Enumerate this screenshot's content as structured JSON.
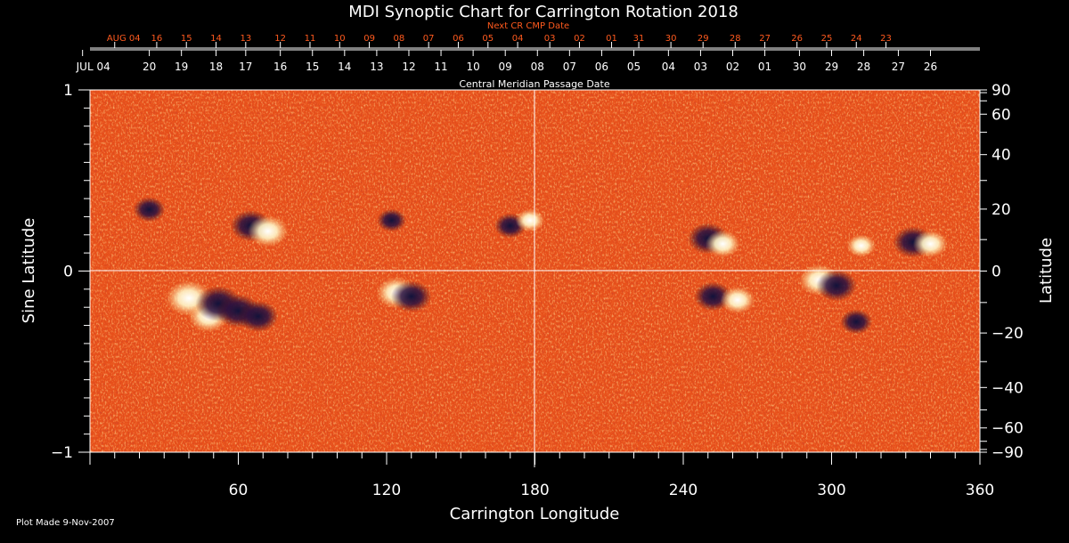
{
  "chart_data": {
    "type": "heatmap",
    "title": "MDI Synoptic Chart for Carrington Rotation 2018",
    "xlabel": "Carrington Longitude",
    "ylabel_left": "Sine Latitude",
    "ylabel_right": "Latitude",
    "top_axis_upper_label": "Next CR CMP Date",
    "top_axis_lower_label": "Central Meridian Passage Date",
    "footer": "Plot Made  9-Nov-2007",
    "xlim": [
      0,
      360
    ],
    "ylim": [
      -1,
      1
    ],
    "x_ticks": [
      {
        "value": 60,
        "label": "60"
      },
      {
        "value": 120,
        "label": "120"
      },
      {
        "value": 180,
        "label": "180"
      },
      {
        "value": 240,
        "label": "240"
      },
      {
        "value": 300,
        "label": "300"
      },
      {
        "value": 360,
        "label": "360"
      }
    ],
    "y_left_ticks": [
      {
        "value": 1,
        "label": "1"
      },
      {
        "value": 0,
        "label": "0"
      },
      {
        "value": -1,
        "label": "−1"
      }
    ],
    "y_right_ticks": [
      {
        "value": 90,
        "label": "90"
      },
      {
        "value": 60,
        "label": "60"
      },
      {
        "value": 40,
        "label": "40"
      },
      {
        "value": 20,
        "label": "20"
      },
      {
        "value": 0,
        "label": "0"
      },
      {
        "value": -20,
        "label": "−20"
      },
      {
        "value": -40,
        "label": "−40"
      },
      {
        "value": -60,
        "label": "−60"
      },
      {
        "value": -90,
        "label": "−90"
      }
    ],
    "upper_date_labels": [
      {
        "lon": 10,
        "label": "AUG 04",
        "month": true
      },
      {
        "lon": 27,
        "label": "16"
      },
      {
        "lon": 39,
        "label": "15"
      },
      {
        "lon": 51,
        "label": "14"
      },
      {
        "lon": 63,
        "label": "13"
      },
      {
        "lon": 77,
        "label": "12"
      },
      {
        "lon": 89,
        "label": "11"
      },
      {
        "lon": 101,
        "label": "10"
      },
      {
        "lon": 113,
        "label": "09"
      },
      {
        "lon": 125,
        "label": "08"
      },
      {
        "lon": 137,
        "label": "07"
      },
      {
        "lon": 149,
        "label": "06"
      },
      {
        "lon": 161,
        "label": "05"
      },
      {
        "lon": 173,
        "label": "04"
      },
      {
        "lon": 186,
        "label": "03"
      },
      {
        "lon": 198,
        "label": "02"
      },
      {
        "lon": 211,
        "label": "01"
      },
      {
        "lon": 222,
        "label": "31"
      },
      {
        "lon": 235,
        "label": "30"
      },
      {
        "lon": 248,
        "label": "29"
      },
      {
        "lon": 261,
        "label": "28"
      },
      {
        "lon": 273,
        "label": "27"
      },
      {
        "lon": 286,
        "label": "26"
      },
      {
        "lon": 298,
        "label": "25"
      },
      {
        "lon": 310,
        "label": "24"
      },
      {
        "lon": 322,
        "label": "23"
      }
    ],
    "lower_date_labels": [
      {
        "lon": -3,
        "label": "JUL 04",
        "month": true
      },
      {
        "lon": 24,
        "label": "20"
      },
      {
        "lon": 37,
        "label": "19"
      },
      {
        "lon": 51,
        "label": "18"
      },
      {
        "lon": 63,
        "label": "17"
      },
      {
        "lon": 77,
        "label": "16"
      },
      {
        "lon": 90,
        "label": "15"
      },
      {
        "lon": 103,
        "label": "14"
      },
      {
        "lon": 116,
        "label": "13"
      },
      {
        "lon": 129,
        "label": "12"
      },
      {
        "lon": 142,
        "label": "11"
      },
      {
        "lon": 155,
        "label": "10"
      },
      {
        "lon": 168,
        "label": "09"
      },
      {
        "lon": 181,
        "label": "08"
      },
      {
        "lon": 194,
        "label": "07"
      },
      {
        "lon": 207,
        "label": "06"
      },
      {
        "lon": 220,
        "label": "05"
      },
      {
        "lon": 234,
        "label": "04"
      },
      {
        "lon": 247,
        "label": "03"
      },
      {
        "lon": 260,
        "label": "02"
      },
      {
        "lon": 273,
        "label": "01"
      },
      {
        "lon": 287,
        "label": "30"
      },
      {
        "lon": 300,
        "label": "29"
      },
      {
        "lon": 313,
        "label": "28"
      },
      {
        "lon": 327,
        "label": "27"
      },
      {
        "lon": 340,
        "label": "26"
      }
    ],
    "magnetic_regions": [
      {
        "lon": 40,
        "sinlat": -0.15,
        "polarity": "positive",
        "strength": 1.0
      },
      {
        "lon": 48,
        "sinlat": -0.25,
        "polarity": "positive",
        "strength": 0.8
      },
      {
        "lon": 52,
        "sinlat": -0.18,
        "polarity": "negative",
        "strength": 1.0
      },
      {
        "lon": 60,
        "sinlat": -0.22,
        "polarity": "negative",
        "strength": 0.9
      },
      {
        "lon": 68,
        "sinlat": -0.25,
        "polarity": "negative",
        "strength": 0.8
      },
      {
        "lon": 65,
        "sinlat": 0.25,
        "polarity": "negative",
        "strength": 0.8
      },
      {
        "lon": 72,
        "sinlat": 0.22,
        "polarity": "positive",
        "strength": 0.8
      },
      {
        "lon": 24,
        "sinlat": 0.34,
        "polarity": "negative",
        "strength": 0.5
      },
      {
        "lon": 124,
        "sinlat": -0.12,
        "polarity": "positive",
        "strength": 0.8
      },
      {
        "lon": 130,
        "sinlat": -0.14,
        "polarity": "negative",
        "strength": 0.8
      },
      {
        "lon": 122,
        "sinlat": 0.28,
        "polarity": "negative",
        "strength": 0.4
      },
      {
        "lon": 170,
        "sinlat": 0.25,
        "polarity": "negative",
        "strength": 0.5
      },
      {
        "lon": 178,
        "sinlat": 0.28,
        "polarity": "positive",
        "strength": 0.4
      },
      {
        "lon": 250,
        "sinlat": 0.18,
        "polarity": "negative",
        "strength": 0.8
      },
      {
        "lon": 256,
        "sinlat": 0.15,
        "polarity": "positive",
        "strength": 0.6
      },
      {
        "lon": 252,
        "sinlat": -0.14,
        "polarity": "negative",
        "strength": 0.7
      },
      {
        "lon": 262,
        "sinlat": -0.16,
        "polarity": "positive",
        "strength": 0.6
      },
      {
        "lon": 295,
        "sinlat": -0.05,
        "polarity": "positive",
        "strength": 0.8
      },
      {
        "lon": 302,
        "sinlat": -0.08,
        "polarity": "negative",
        "strength": 0.8
      },
      {
        "lon": 310,
        "sinlat": -0.28,
        "polarity": "negative",
        "strength": 0.5
      },
      {
        "lon": 333,
        "sinlat": 0.16,
        "polarity": "negative",
        "strength": 0.8
      },
      {
        "lon": 340,
        "sinlat": 0.15,
        "polarity": "positive",
        "strength": 0.6
      },
      {
        "lon": 312,
        "sinlat": 0.14,
        "polarity": "positive",
        "strength": 0.4
      }
    ]
  }
}
